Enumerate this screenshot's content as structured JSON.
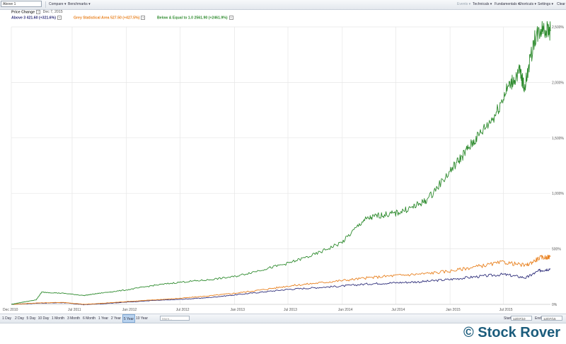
{
  "toolbar": {
    "symbol_value": "Above 1",
    "compare_label": "Compare",
    "benchmarks_label": "Benchmarks",
    "events_label": "Events",
    "technicals_label": "Technicals",
    "fundamentals_label": "Fundamentals",
    "shortcuts_label": "Shortcuts",
    "settings_label": "Settings",
    "clear_label": "Clear"
  },
  "legend": {
    "title": "Price Change",
    "date": "Dec 7, 2015",
    "items": [
      {
        "label": "Above 3 421.60 (+321.6%)",
        "color": "#2e2e7a"
      },
      {
        "label": "Grey Statistical Area 527.50 (+427.5%)",
        "color": "#e8801e"
      },
      {
        "label": "Below & Equal to 1.0 2561.90 (+2461.9%)",
        "color": "#2e8b2e"
      }
    ]
  },
  "range_bar": {
    "buttons": [
      "1 Day",
      "2 Day",
      "5 Day",
      "10 Day",
      "1 Month",
      "3 Month",
      "6 Month",
      "1 Year",
      "2 Year",
      "5 Year",
      "10 Year"
    ],
    "active": "5 Year",
    "more_placeholder": "More...",
    "start_label": "Start",
    "start_value": "12/07/10",
    "end_label": "End",
    "end_value": "12/07/15"
  },
  "watermark": "© Stock Rover",
  "chart_data": {
    "type": "line",
    "title": "",
    "xlabel": "",
    "ylabel": "",
    "x_ticks": [
      "Dec 2010",
      "Jul 2011",
      "Jan 2012",
      "Jul 2012",
      "Jan 2013",
      "Jul 2013",
      "Jan 2014",
      "Jul 2014",
      "Jan 2015",
      "Jul 2015"
    ],
    "y_ticks": [
      "0%",
      "500%",
      "1,000%",
      "1,500%",
      "2,000%",
      "2,500%"
    ],
    "ylim": [
      0,
      2500
    ],
    "xlim": [
      "2010-12-07",
      "2015-12-07"
    ],
    "grid": true,
    "series": [
      {
        "name": "Above 3",
        "color": "#2e2e7a",
        "x": [
          "2010-12-07",
          "2011-03-01",
          "2011-06-01",
          "2011-08-10",
          "2011-10-01",
          "2012-01-01",
          "2012-04-01",
          "2012-07-01",
          "2012-10-01",
          "2013-01-01",
          "2013-04-01",
          "2013-07-01",
          "2013-10-01",
          "2014-01-01",
          "2014-04-01",
          "2014-07-01",
          "2014-10-01",
          "2015-01-01",
          "2015-04-01",
          "2015-07-01",
          "2015-09-15",
          "2015-11-01",
          "2015-12-07"
        ],
        "values": [
          0,
          10,
          15,
          -3,
          5,
          20,
          35,
          45,
          60,
          85,
          110,
          135,
          150,
          165,
          185,
          195,
          205,
          225,
          250,
          270,
          240,
          305,
          321.6
        ]
      },
      {
        "name": "Grey Statistical Area",
        "color": "#e8801e",
        "x": [
          "2010-12-07",
          "2011-03-01",
          "2011-06-01",
          "2011-08-10",
          "2011-10-01",
          "2012-01-01",
          "2012-04-01",
          "2012-07-01",
          "2012-10-01",
          "2013-01-01",
          "2013-04-01",
          "2013-07-01",
          "2013-10-01",
          "2014-01-01",
          "2014-04-01",
          "2014-07-01",
          "2014-10-01",
          "2015-01-01",
          "2015-04-01",
          "2015-07-01",
          "2015-09-15",
          "2015-11-01",
          "2015-12-07"
        ],
        "values": [
          0,
          12,
          18,
          0,
          8,
          25,
          40,
          55,
          75,
          100,
          130,
          165,
          190,
          215,
          240,
          260,
          275,
          300,
          340,
          380,
          350,
          420,
          427.5
        ]
      },
      {
        "name": "Below & Equal to 1.0",
        "color": "#2e8b2e",
        "x": [
          "2010-12-07",
          "2011-01-15",
          "2011-03-01",
          "2011-03-20",
          "2011-06-01",
          "2011-08-10",
          "2011-10-01",
          "2012-01-01",
          "2012-04-01",
          "2012-07-01",
          "2012-10-01",
          "2013-01-01",
          "2013-04-01",
          "2013-07-01",
          "2013-10-01",
          "2014-01-01",
          "2014-03-15",
          "2014-05-01",
          "2014-07-01",
          "2014-09-01",
          "2014-10-15",
          "2015-01-01",
          "2015-02-15",
          "2015-04-01",
          "2015-06-01",
          "2015-07-15",
          "2015-08-25",
          "2015-09-10",
          "2015-10-15",
          "2015-11-10",
          "2015-12-07"
        ],
        "values": [
          0,
          20,
          40,
          110,
          100,
          80,
          100,
          130,
          170,
          200,
          220,
          250,
          310,
          370,
          450,
          560,
          760,
          800,
          820,
          880,
          940,
          1200,
          1350,
          1500,
          1700,
          1950,
          2100,
          1950,
          2400,
          2500,
          2461.9
        ]
      }
    ]
  }
}
